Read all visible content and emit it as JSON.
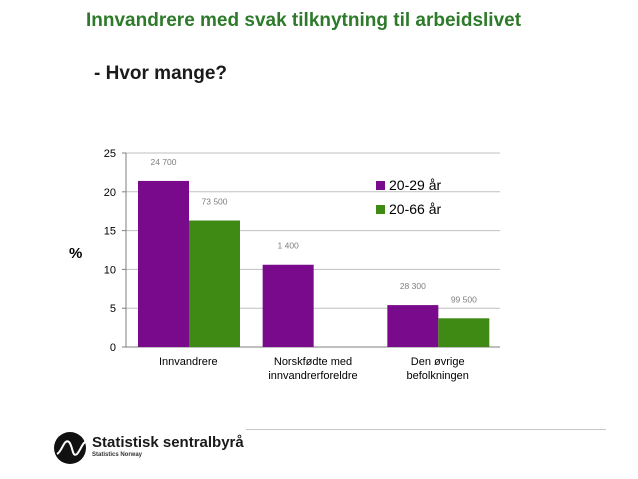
{
  "slide": {
    "title": "Innvandrere med svak tilknytning til arbeidslivet",
    "subtitle": "- Hvor mange?"
  },
  "chart_data": {
    "type": "bar",
    "categories": [
      "Innvandrere",
      "Norskfødte med\ninnvandrerforeldre",
      "Den øvrige\nbefolkningen"
    ],
    "series": [
      {
        "name": "20-29 år",
        "color": "#7a0a8c",
        "values": [
          21.4,
          10.6,
          5.4
        ],
        "labels": [
          "24 700",
          "1 400",
          "28 300"
        ]
      },
      {
        "name": "20-66 år",
        "color": "#3f8a14",
        "values": [
          16.3,
          null,
          3.7
        ],
        "labels": [
          "73 500",
          "",
          "99 500"
        ]
      }
    ],
    "ylabel": "%",
    "ylim": [
      0,
      25
    ],
    "yticks": [
      0,
      5,
      10,
      15,
      20,
      25
    ],
    "grid": true,
    "legend": "right"
  },
  "footer": {
    "logo_name": "Statistisk sentralbyrå",
    "logo_sub": "Statistics Norway",
    "logo_icon": "ssb-logo-icon"
  }
}
